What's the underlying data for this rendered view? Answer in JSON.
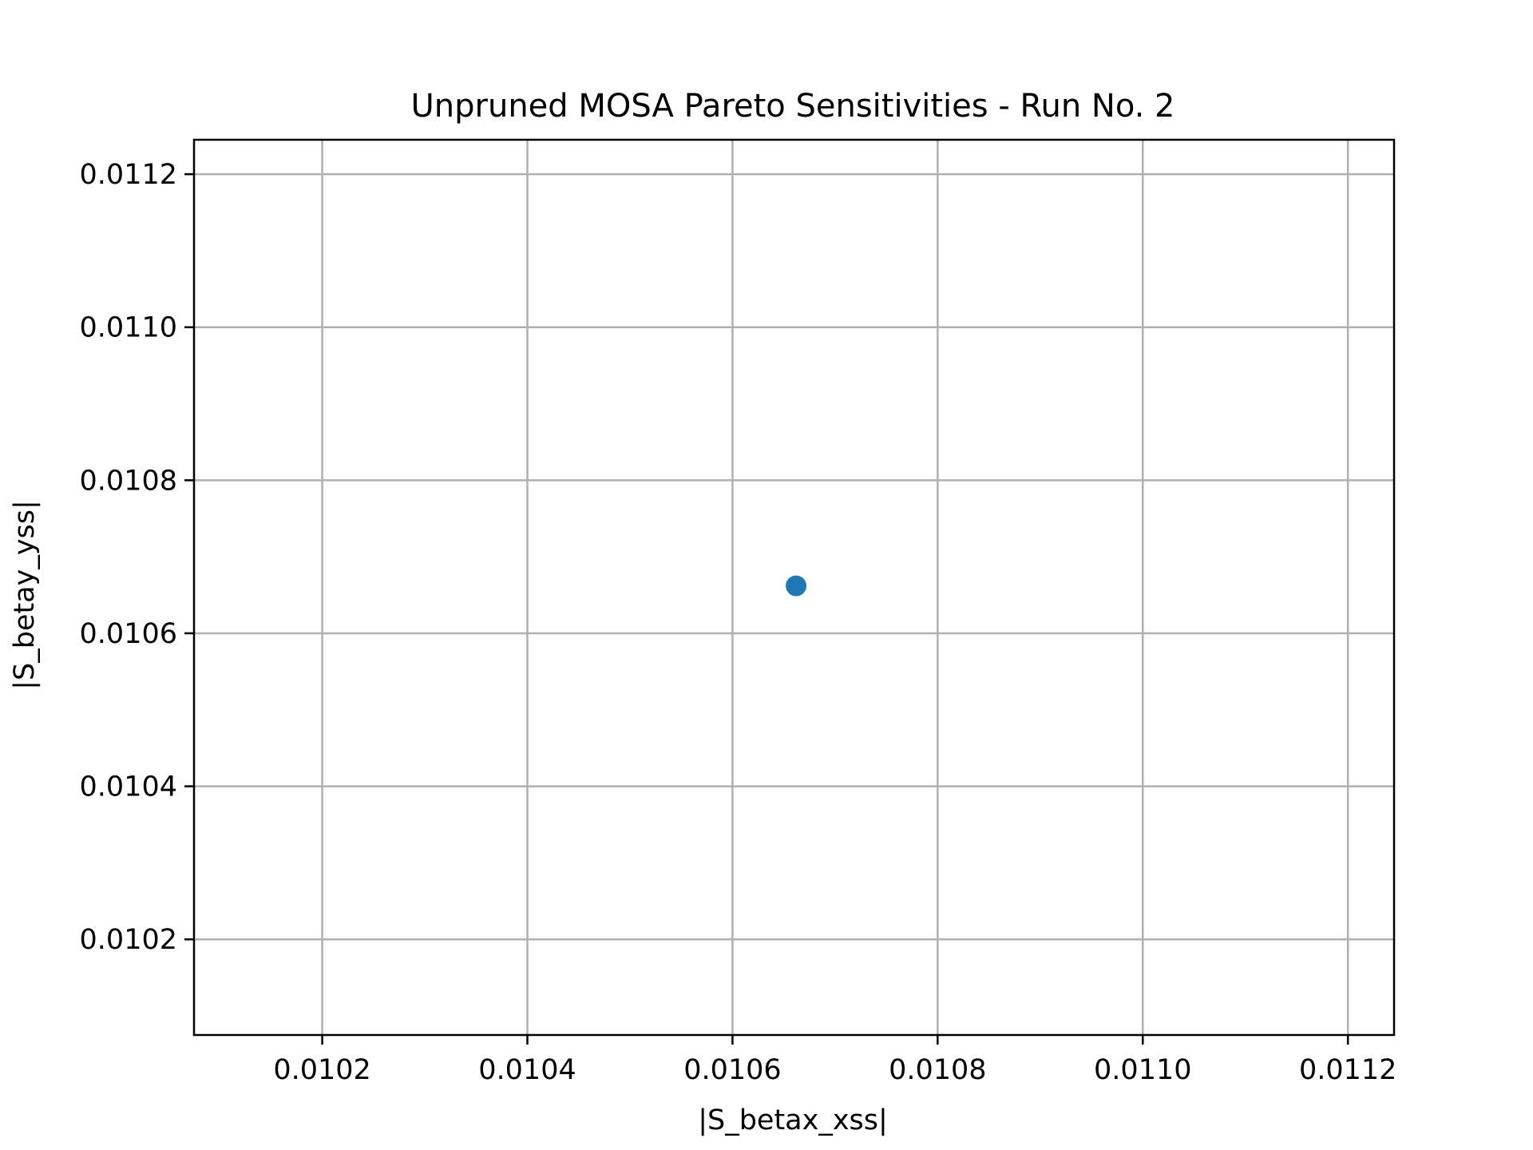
{
  "chart_data": {
    "type": "scatter",
    "title": "Unpruned MOSA Pareto Sensitivities - Run No. 2",
    "xlabel": "|S_betax_xss|",
    "ylabel": "|S_betay_yss|",
    "xlim": [
      0.010075,
      0.011245
    ],
    "ylim": [
      0.010075,
      0.011245
    ],
    "xticks": [
      0.0102,
      0.0104,
      0.0106,
      0.0108,
      0.011,
      0.0112
    ],
    "yticks": [
      0.0102,
      0.0104,
      0.0106,
      0.0108,
      0.011,
      0.0112
    ],
    "xtick_labels": [
      "0.0102",
      "0.0104",
      "0.0106",
      "0.0108",
      "0.0110",
      "0.0112"
    ],
    "ytick_labels": [
      "0.0102",
      "0.0104",
      "0.0106",
      "0.0108",
      "0.0110",
      "0.0112"
    ],
    "grid": true,
    "series": [
      {
        "x": [
          0.010662
        ],
        "y": [
          0.010662
        ],
        "color": "#1f77b4"
      }
    ]
  }
}
